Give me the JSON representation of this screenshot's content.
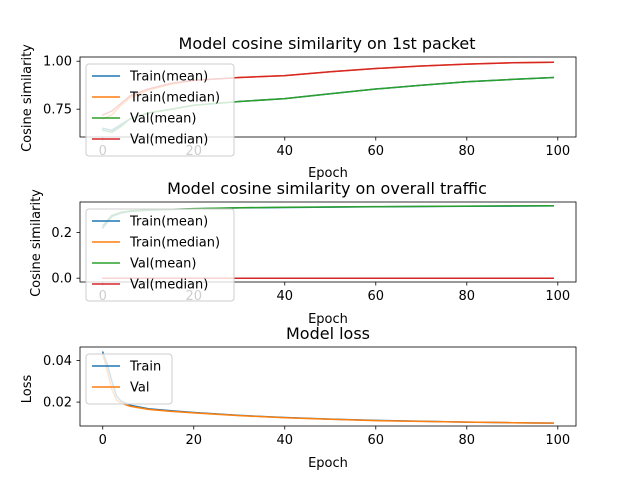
{
  "chart_data": [
    {
      "type": "line",
      "title": "Model cosine similarity on 1st packet",
      "xlabel": "Epoch",
      "ylabel": "Cosine similarity",
      "xlim": [
        -5,
        104
      ],
      "ylim": [
        0.605,
        1.022
      ],
      "xticks": [
        0,
        20,
        40,
        60,
        80,
        100
      ],
      "yticks": [
        0.75,
        1.0
      ],
      "ytick_labels": [
        "0.75",
        "1.00"
      ],
      "legend": "upper-left",
      "series": [
        {
          "name": "Train(mean)",
          "color": "#1f77b4",
          "x": [
            0,
            2,
            4,
            6,
            10,
            15,
            20,
            30,
            40,
            50,
            60,
            70,
            80,
            90,
            99
          ],
          "y": [
            0.65,
            0.64,
            0.67,
            0.7,
            0.73,
            0.75,
            0.77,
            0.79,
            0.805,
            0.83,
            0.855,
            0.875,
            0.893,
            0.905,
            0.915
          ]
        },
        {
          "name": "Train(median)",
          "color": "#ff7f0e",
          "x": [
            0,
            2,
            4,
            6,
            10,
            15,
            20,
            30,
            40,
            50,
            60,
            70,
            80,
            90,
            99
          ],
          "y": [
            0.7,
            0.72,
            0.77,
            0.81,
            0.85,
            0.88,
            0.9,
            0.915,
            0.925,
            0.945,
            0.962,
            0.975,
            0.985,
            0.992,
            0.995
          ]
        },
        {
          "name": "Val(mean)",
          "color": "#2ca02c",
          "x": [
            0,
            2,
            4,
            6,
            10,
            15,
            20,
            30,
            40,
            50,
            60,
            70,
            80,
            90,
            99
          ],
          "y": [
            0.64,
            0.63,
            0.66,
            0.7,
            0.73,
            0.75,
            0.77,
            0.79,
            0.805,
            0.83,
            0.855,
            0.875,
            0.893,
            0.905,
            0.915
          ]
        },
        {
          "name": "Val(median)",
          "color": "#d62728",
          "x": [
            0,
            2,
            4,
            6,
            10,
            15,
            20,
            30,
            40,
            50,
            60,
            70,
            80,
            90,
            99
          ],
          "y": [
            0.72,
            0.74,
            0.78,
            0.82,
            0.855,
            0.885,
            0.9,
            0.915,
            0.925,
            0.945,
            0.962,
            0.975,
            0.985,
            0.992,
            0.995
          ]
        }
      ]
    },
    {
      "type": "line",
      "title": "Model cosine similarity on overall traffic",
      "xlabel": "Epoch",
      "ylabel": "Cosine similarity",
      "xlim": [
        -5,
        104
      ],
      "ylim": [
        -0.0167,
        0.333
      ],
      "xticks": [
        0,
        20,
        40,
        60,
        80,
        100
      ],
      "yticks": [
        0.0,
        0.2
      ],
      "ytick_labels": [
        "0.0",
        "0.2"
      ],
      "legend": "upper-left",
      "series": [
        {
          "name": "Train(mean)",
          "color": "#1f77b4",
          "x": [
            0,
            2,
            4,
            6,
            10,
            20,
            30,
            40,
            60,
            80,
            99
          ],
          "y": [
            0.22,
            0.27,
            0.285,
            0.292,
            0.297,
            0.303,
            0.307,
            0.309,
            0.312,
            0.314,
            0.316
          ]
        },
        {
          "name": "Train(median)",
          "color": "#ff7f0e",
          "x": [
            0,
            2,
            4,
            6,
            10,
            20,
            30,
            40,
            60,
            80,
            99
          ],
          "y": [
            0.0,
            0.0,
            0.0,
            0.0,
            0.0,
            0.0,
            0.0,
            0.0,
            0.0,
            0.0,
            0.0
          ]
        },
        {
          "name": "Val(mean)",
          "color": "#2ca02c",
          "x": [
            0,
            2,
            4,
            6,
            10,
            20,
            30,
            40,
            60,
            80,
            99
          ],
          "y": [
            0.23,
            0.275,
            0.288,
            0.294,
            0.298,
            0.304,
            0.308,
            0.31,
            0.313,
            0.315,
            0.317
          ]
        },
        {
          "name": "Val(median)",
          "color": "#d62728",
          "x": [
            0,
            2,
            4,
            6,
            10,
            20,
            30,
            40,
            60,
            80,
            99
          ],
          "y": [
            0.0,
            0.0,
            0.0,
            0.0,
            0.0,
            0.0,
            0.0,
            0.0,
            0.0,
            0.0,
            0.0
          ]
        }
      ]
    },
    {
      "type": "line",
      "title": "Model loss",
      "xlabel": "Epoch",
      "ylabel": "Loss",
      "xlim": [
        -5,
        104
      ],
      "ylim": [
        0.0085,
        0.0465
      ],
      "xticks": [
        0,
        20,
        40,
        60,
        80,
        100
      ],
      "yticks": [
        0.02,
        0.04
      ],
      "ytick_labels": [
        "0.02",
        "0.04"
      ],
      "legend": "upper-left",
      "series": [
        {
          "name": "Train",
          "color": "#1f77b4",
          "x": [
            0,
            1,
            2,
            3,
            4,
            6,
            10,
            15,
            20,
            30,
            40,
            50,
            60,
            70,
            80,
            90,
            99
          ],
          "y": [
            0.044,
            0.038,
            0.03,
            0.023,
            0.0205,
            0.0185,
            0.0168,
            0.0158,
            0.015,
            0.0136,
            0.0126,
            0.0118,
            0.0112,
            0.0108,
            0.0104,
            0.0101,
            0.0099
          ]
        },
        {
          "name": "Val",
          "color": "#ff7f0e",
          "x": [
            0,
            1,
            2,
            3,
            4,
            6,
            10,
            15,
            20,
            30,
            40,
            50,
            60,
            70,
            80,
            90,
            99
          ],
          "y": [
            0.043,
            0.035,
            0.026,
            0.021,
            0.0195,
            0.018,
            0.0165,
            0.0155,
            0.0148,
            0.0135,
            0.0125,
            0.0117,
            0.0111,
            0.0107,
            0.0104,
            0.0101,
            0.0099
          ]
        }
      ]
    }
  ]
}
